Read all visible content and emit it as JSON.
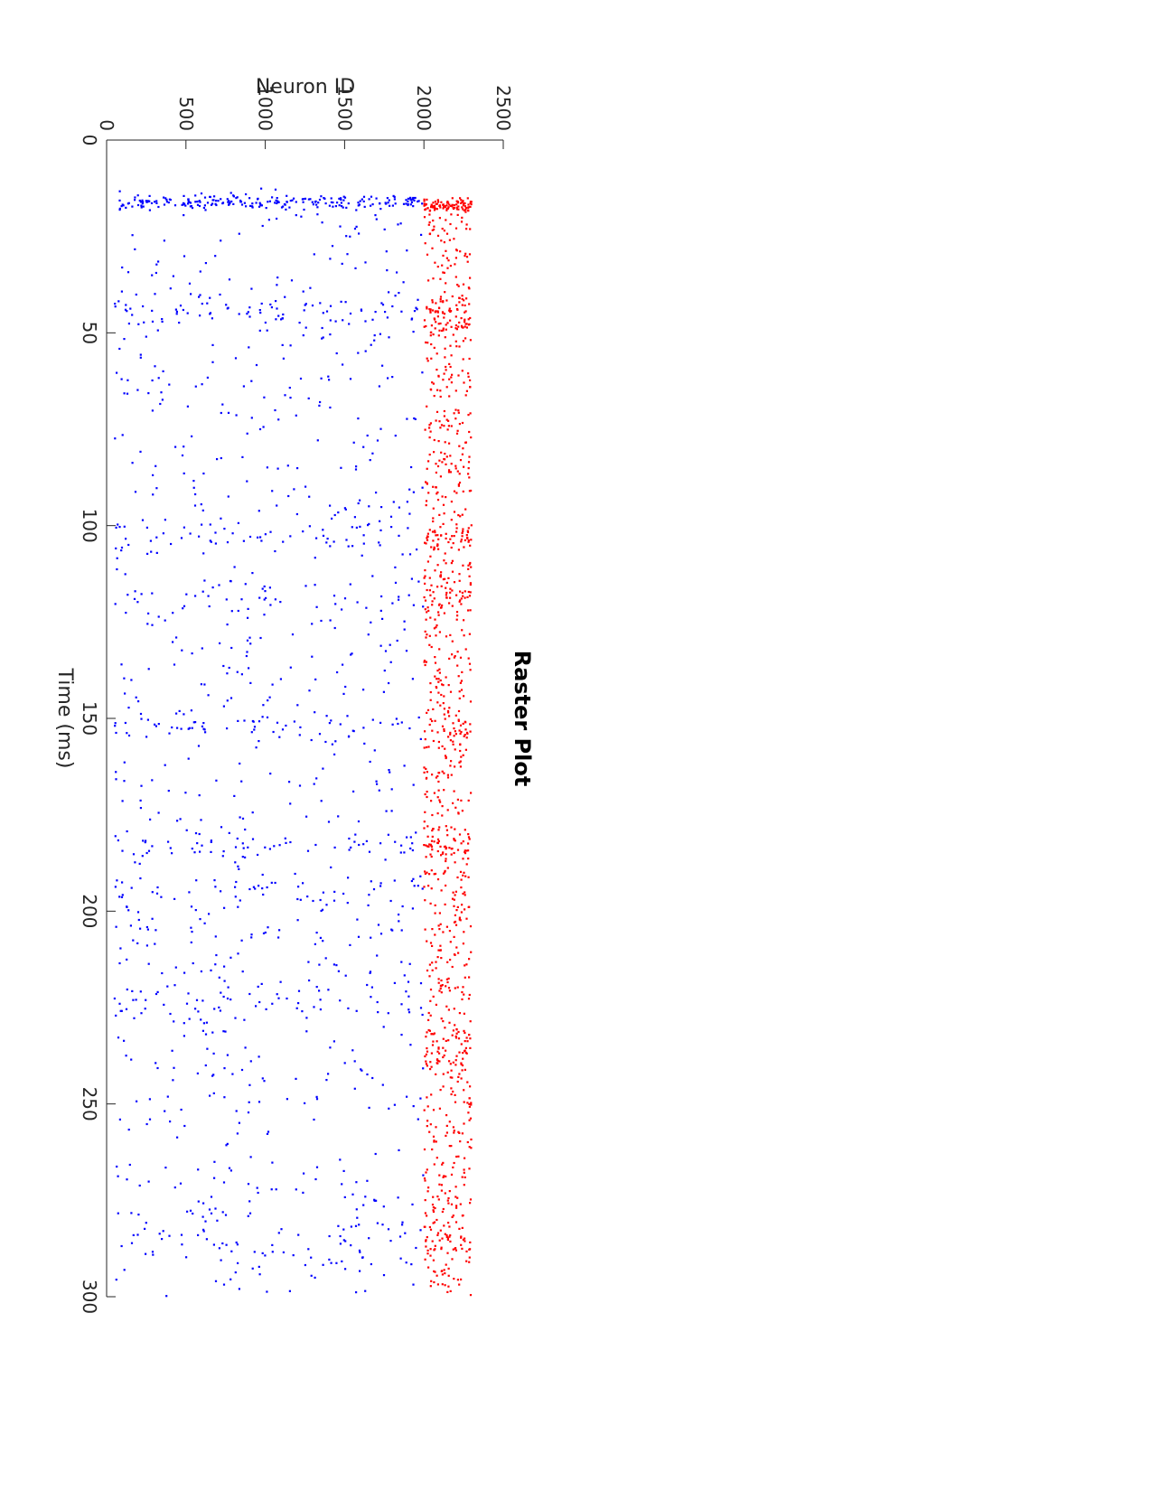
{
  "chart_data": {
    "type": "scatter",
    "title": "Raster Plot",
    "xlabel": "Time (ms)",
    "ylabel": "Neuron ID",
    "xlim": [
      0,
      300
    ],
    "ylim": [
      0,
      2500
    ],
    "xticks": [
      0,
      50,
      100,
      150,
      200,
      250,
      300
    ],
    "yticks": [
      0,
      500,
      1000,
      1500,
      2000,
      2500
    ],
    "orientation": "rotated 90 degrees clockwise on page",
    "grid": false,
    "legend": "none",
    "series": [
      {
        "color": "#ff0000",
        "neuron_range": [
          2000,
          2300
        ],
        "t_start": 15,
        "t_end": 300,
        "rate_per_ms": 3.2,
        "bursts": [
          {
            "t": 17,
            "width": 1.5,
            "count": 90
          },
          {
            "t": 46,
            "width": 5,
            "count": 60
          },
          {
            "t": 103,
            "width": 4,
            "count": 35
          },
          {
            "t": 118,
            "width": 6,
            "count": 30
          },
          {
            "t": 153,
            "width": 5,
            "count": 30
          },
          {
            "t": 184,
            "width": 4,
            "count": 35
          },
          {
            "t": 235,
            "width": 5,
            "count": 40
          },
          {
            "t": 288,
            "width": 5,
            "count": 30
          }
        ]
      },
      {
        "color": "#0000ff",
        "neuron_range": [
          50,
          2000
        ],
        "t_start": 12,
        "t_end": 300,
        "rate_per_ms": 3.0,
        "bursts": [
          {
            "t": 16,
            "width": 1.5,
            "count": 220
          },
          {
            "t": 44,
            "width": 4,
            "count": 70
          },
          {
            "t": 103,
            "width": 4,
            "count": 50
          },
          {
            "t": 120,
            "width": 5,
            "count": 40
          },
          {
            "t": 152,
            "width": 4,
            "count": 50
          },
          {
            "t": 183,
            "width": 3,
            "count": 40
          },
          {
            "t": 195,
            "width": 4,
            "count": 40
          },
          {
            "t": 224,
            "width": 6,
            "count": 50
          },
          {
            "t": 285,
            "width": 6,
            "count": 40
          }
        ]
      }
    ]
  }
}
